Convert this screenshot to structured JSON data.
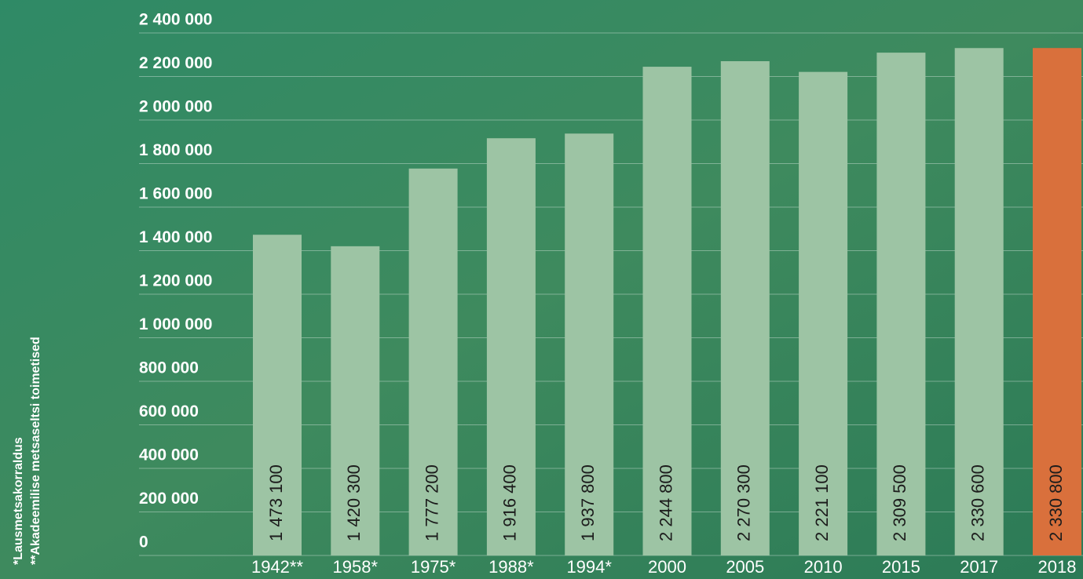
{
  "chart_data": {
    "type": "bar",
    "categories": [
      "1942**",
      "1958*",
      "1975*",
      "1988*",
      "1994*",
      "2000",
      "2005",
      "2010",
      "2015",
      "2017",
      "2018"
    ],
    "values": [
      1473100,
      1420300,
      1777200,
      1916400,
      1937800,
      2244800,
      2270300,
      2221100,
      2309500,
      2330600,
      2330800
    ],
    "value_labels": [
      "1 473 100",
      "1 420 300",
      "1 777 200",
      "1 916 400",
      "1 937 800",
      "2 244 800",
      "2 270 300",
      "2 221 100",
      "2 309 500",
      "2 330 600",
      "2 330 800"
    ],
    "colors": [
      "#9dc4a4",
      "#9dc4a4",
      "#9dc4a4",
      "#9dc4a4",
      "#9dc4a4",
      "#9dc4a4",
      "#9dc4a4",
      "#9dc4a4",
      "#9dc4a4",
      "#9dc4a4",
      "#d9703c"
    ],
    "ylim": [
      0,
      2400000
    ],
    "yticks": [
      {
        "value": 0,
        "label": "0"
      },
      {
        "value": 200000,
        "label": "200 000"
      },
      {
        "value": 400000,
        "label": "400 000"
      },
      {
        "value": 600000,
        "label": "600 000"
      },
      {
        "value": 800000,
        "label": "800 000"
      },
      {
        "value": 1000000,
        "label": "1 000 000"
      },
      {
        "value": 1200000,
        "label": "1 200 000"
      },
      {
        "value": 1400000,
        "label": "1 400 000"
      },
      {
        "value": 1600000,
        "label": "1 600 000"
      },
      {
        "value": 1800000,
        "label": "1 800 000"
      },
      {
        "value": 2000000,
        "label": "2 000 000"
      },
      {
        "value": 2200000,
        "label": "2 200 000"
      },
      {
        "value": 2400000,
        "label": "2 400 000"
      }
    ],
    "grid": true,
    "footnotes": [
      "*Lausmetsakorraldus",
      "**Akadeemilise metsaseltsi toimetised"
    ]
  }
}
